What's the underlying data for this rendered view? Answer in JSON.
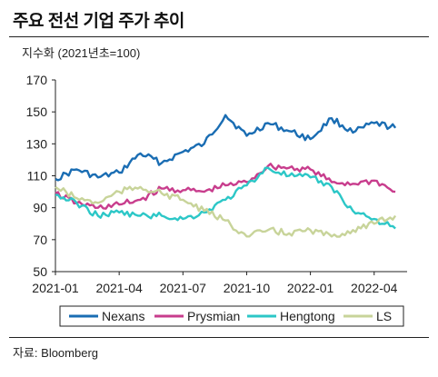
{
  "title": "주요 전선 기업 주가 추이",
  "source": "자료: Bloomberg",
  "colors": {
    "Nexans": "#1a6db3",
    "Prysmian": "#c83d8d",
    "Hengtong": "#2cc7c7",
    "LS": "#c8d49a"
  },
  "chart_data": {
    "type": "line",
    "unit_label": "지수화 (2021년초=100)",
    "ylim": [
      50,
      170
    ],
    "y_ticks": [
      "170",
      "150",
      "130",
      "110",
      "90",
      "70",
      "50"
    ],
    "x_ticks": [
      "2021-01",
      "2021-04",
      "2021-07",
      "2021-10",
      "2022-01",
      "2022-04"
    ],
    "grid": false,
    "legend": "bottom",
    "x": [
      "2021-01",
      "2021-02",
      "2021-03",
      "2021-04",
      "2021-05",
      "2021-06",
      "2021-07",
      "2021-08",
      "2021-09",
      "2021-10",
      "2021-11",
      "2021-12",
      "2022-01",
      "2022-02",
      "2022-03",
      "2022-04",
      "2022-05"
    ],
    "series": [
      {
        "name": "Nexans",
        "values": [
          108,
          114,
          109,
          112,
          124,
          118,
          125,
          130,
          148,
          135,
          143,
          138,
          133,
          146,
          137,
          143,
          140
        ]
      },
      {
        "name": "Prysmian",
        "values": [
          99,
          93,
          90,
          92,
          95,
          102,
          101,
          100,
          104,
          106,
          116,
          115,
          114,
          106,
          105,
          107,
          100
        ]
      },
      {
        "name": "Hengtong",
        "values": [
          98,
          93,
          85,
          87,
          85,
          85,
          83,
          87,
          95,
          104,
          115,
          110,
          109,
          103,
          88,
          83,
          77
        ]
      },
      {
        "name": "LS",
        "values": [
          103,
          96,
          93,
          100,
          103,
          99,
          95,
          88,
          82,
          72,
          76,
          74,
          76,
          72,
          76,
          80,
          85
        ]
      }
    ]
  }
}
